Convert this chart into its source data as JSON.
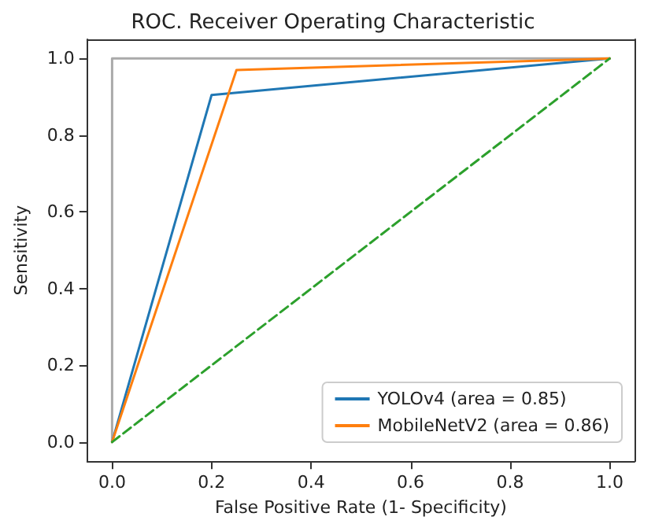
{
  "chart_data": {
    "type": "line",
    "title": "ROC. Receiver Operating Characteristic",
    "xlabel": "False Positive Rate (1- Specificity)",
    "ylabel": "Sensitivity",
    "series": [
      {
        "color": "#aaaaaa",
        "x": [
          0,
          0,
          1
        ],
        "values": [
          0,
          1,
          1
        ]
      },
      {
        "name": "YOLOv4 (area = 0.85)",
        "color": "#1f77b4",
        "x": [
          0,
          0.2,
          1
        ],
        "values": [
          0,
          0.905,
          1
        ]
      },
      {
        "name": "MobileNetV2 (area = 0.86)",
        "color": "#ff7f0e",
        "x": [
          0,
          0.25,
          1
        ],
        "values": [
          0,
          0.97,
          1
        ]
      },
      {
        "color": "#2ca02c",
        "x": [
          0,
          1
        ],
        "values": [
          0,
          1
        ],
        "line_style": "dashed"
      }
    ],
    "xlim": [
      -0.05,
      1.05
    ],
    "ylim": [
      -0.05,
      1.05
    ],
    "xticks": [
      {
        "value": 0,
        "label": "0.0"
      },
      0.2,
      0.4,
      0.6,
      0.8,
      {
        "value": 1,
        "label": "1.0"
      }
    ],
    "yticks": [
      {
        "value": 0,
        "label": "0.0"
      },
      0.2,
      0.4,
      0.6,
      0.8,
      {
        "value": 1,
        "label": "1.0"
      }
    ],
    "grid": false,
    "legend": "bottom right",
    "marker": "none",
    "line_style": "solid"
  }
}
